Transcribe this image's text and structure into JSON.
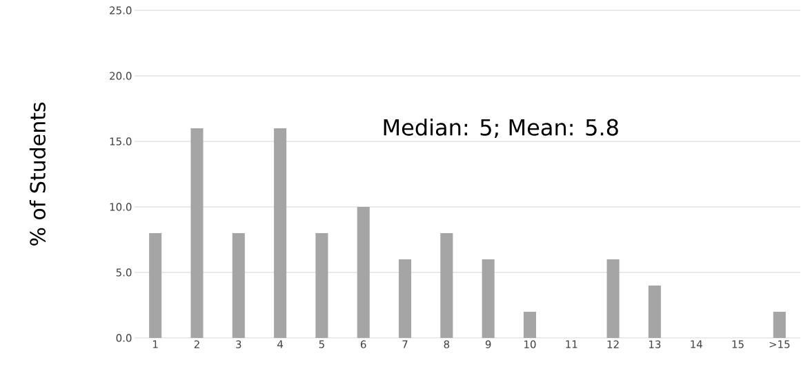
{
  "chart_data": {
    "type": "bar",
    "ylabel": "% of Students",
    "categories": [
      "1",
      "2",
      "3",
      "4",
      "5",
      "6",
      "7",
      "8",
      "9",
      "10",
      "11",
      "12",
      "13",
      "14",
      "15",
      ">15"
    ],
    "values": [
      8,
      16,
      8,
      16,
      8,
      10,
      6,
      8,
      6,
      2,
      0,
      6,
      4,
      0,
      0,
      2
    ],
    "color": "#a5a5a5",
    "ylim": [
      0,
      25
    ],
    "yticks": [
      {
        "value": 0,
        "label": "0.0"
      },
      {
        "value": 5,
        "label": "5.0"
      },
      {
        "value": 10,
        "label": "10.0"
      },
      {
        "value": 15,
        "label": "15.0"
      },
      {
        "value": 20,
        "label": "20.0"
      },
      {
        "value": 25,
        "label": "25.0"
      }
    ],
    "grid": "y",
    "annotations": [
      "Median: 5; Mean: 5.8"
    ]
  }
}
